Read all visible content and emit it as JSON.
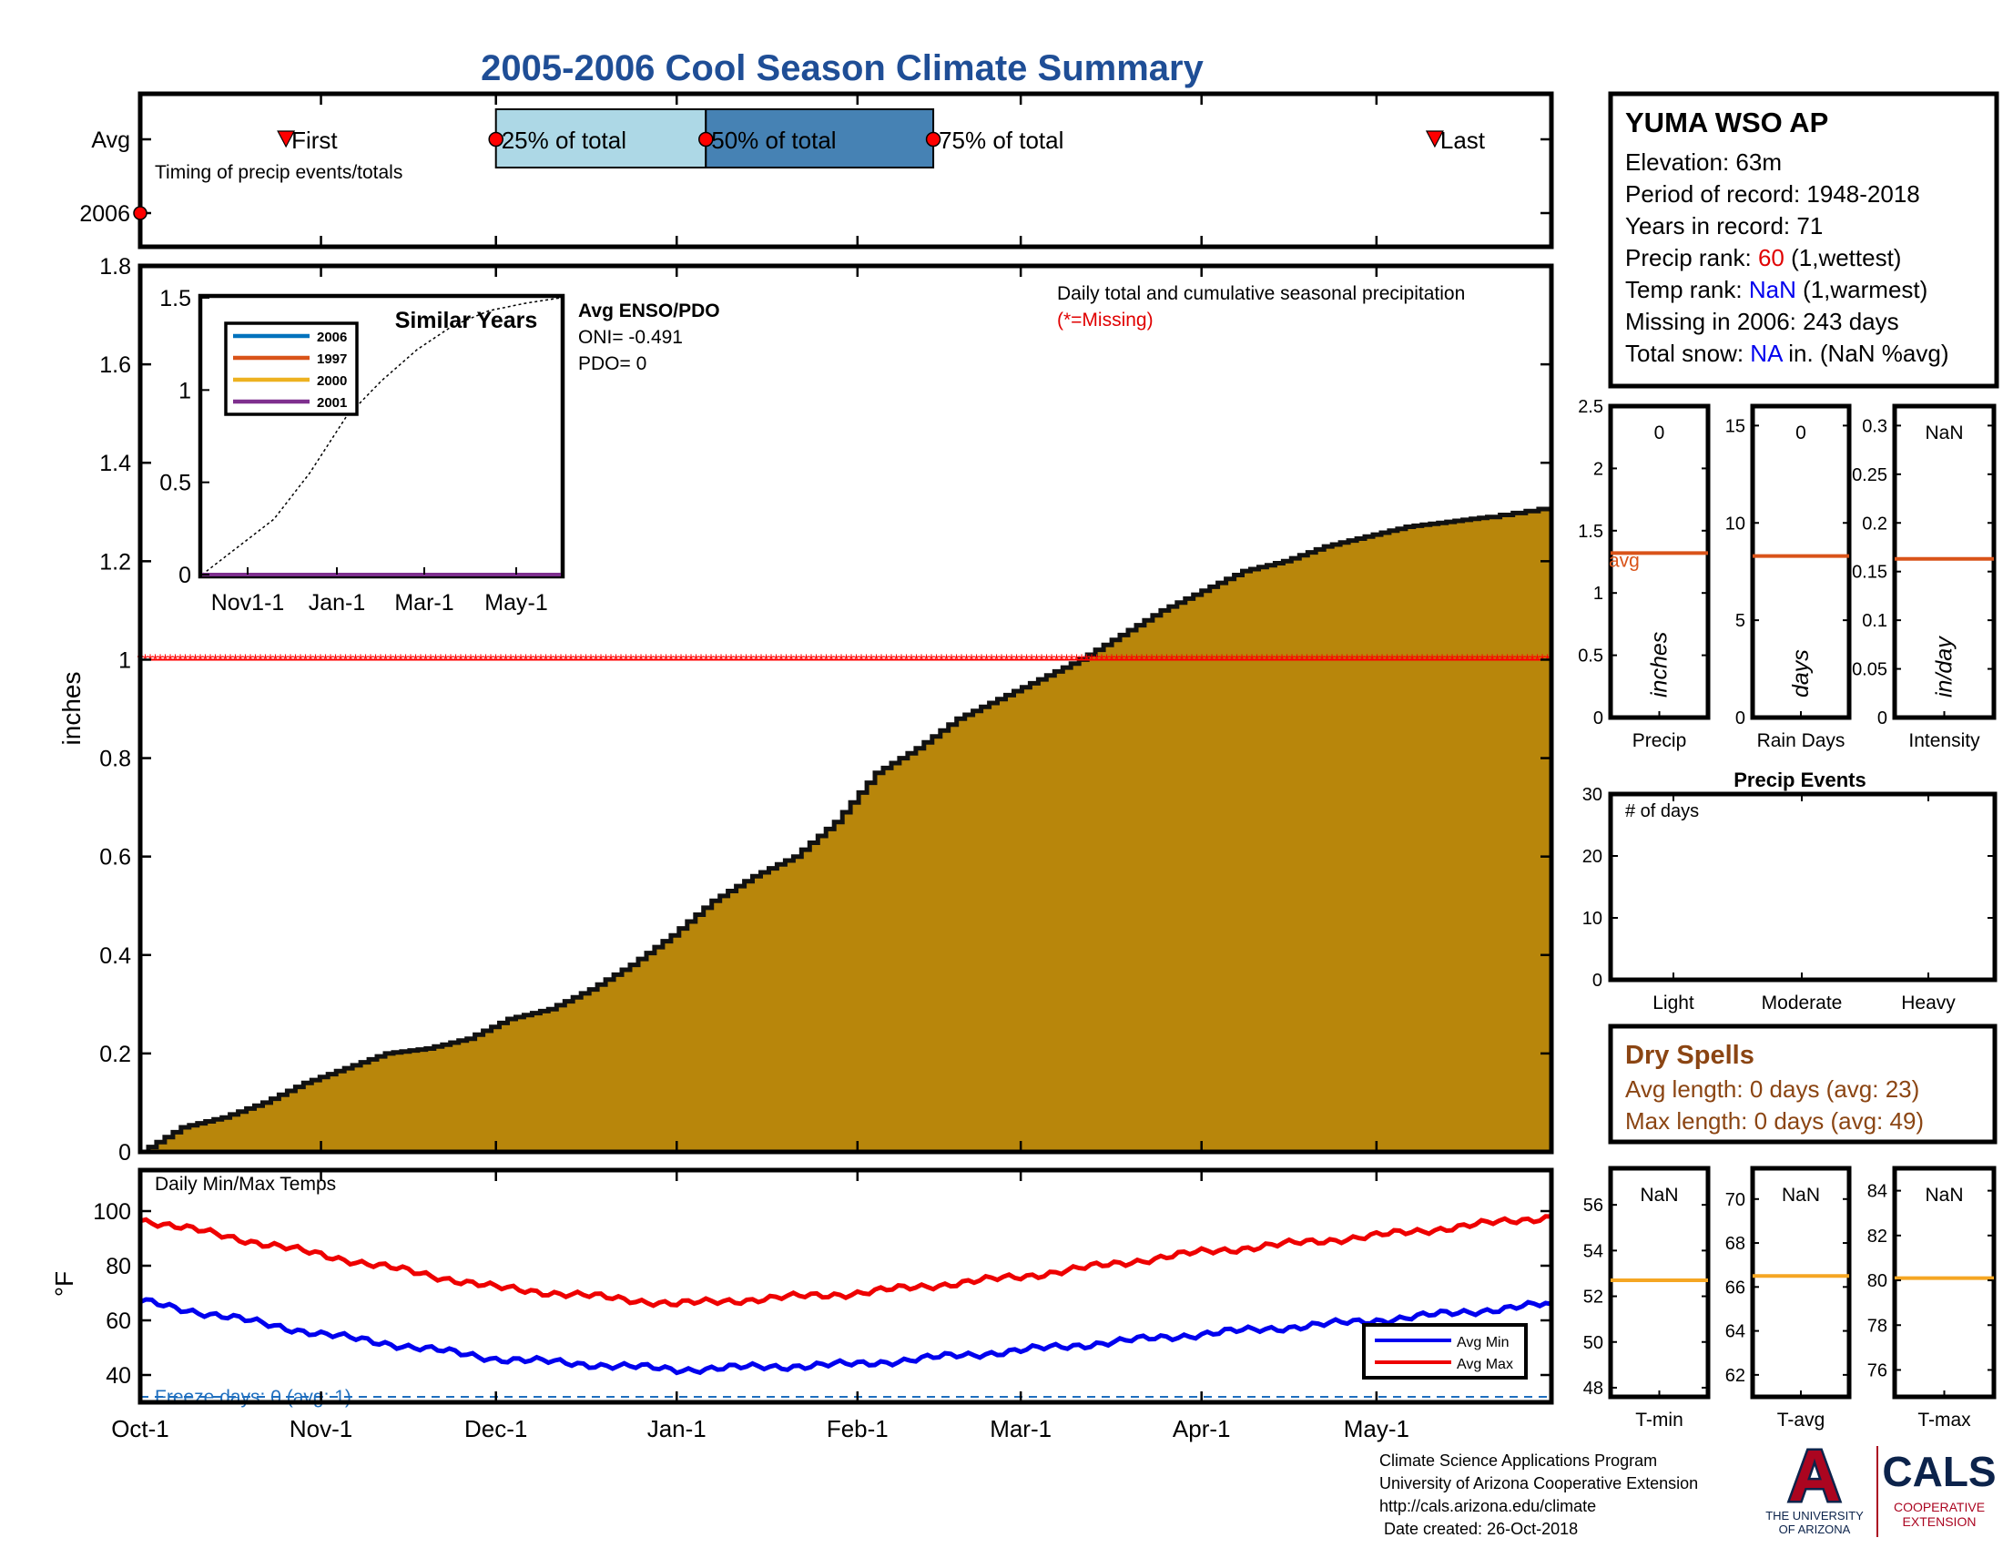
{
  "title": "2005-2006 Cool Season Climate Summary",
  "colors": {
    "title": "#1f4e96",
    "fill": "#b8860b",
    "red": "#ff0000",
    "blue": "#0000ee",
    "orange": "#d95319",
    "gold": "#f5a623",
    "light_blue_box": "#add8e6",
    "dark_blue_box": "#4682b4",
    "dry_spell": "#8b4513"
  },
  "timing": {
    "row_labels": [
      "Avg",
      "2006"
    ],
    "caption": "Timing of precip events/totals",
    "markers": [
      {
        "label": "First",
        "date": "2005-10-26",
        "kind": "triangle"
      },
      {
        "label": "25% of total",
        "date": "2005-12-01",
        "kind": "circle"
      },
      {
        "label": "50% of total",
        "date": "2006-01-06",
        "kind": "circle"
      },
      {
        "label": "75% of total",
        "date": "2006-02-14",
        "kind": "circle"
      },
      {
        "label": "Last",
        "date": "2006-05-11",
        "kind": "triangle"
      }
    ],
    "year_marker_date": "2005-10-01"
  },
  "x_axis": {
    "start": "2005-10-01",
    "end": "2006-05-31",
    "ticks": [
      {
        "label": "Oct-1",
        "date": "2005-10-01"
      },
      {
        "label": "Nov-1",
        "date": "2005-11-01"
      },
      {
        "label": "Dec-1",
        "date": "2005-12-01"
      },
      {
        "label": "Jan-1",
        "date": "2006-01-01"
      },
      {
        "label": "Feb-1",
        "date": "2006-02-01"
      },
      {
        "label": "Mar-1",
        "date": "2006-03-01"
      },
      {
        "label": "Apr-1",
        "date": "2006-04-01"
      },
      {
        "label": "May-1",
        "date": "2006-05-01"
      }
    ]
  },
  "chart_data": [
    {
      "id": "precip",
      "type": "area",
      "title": "Daily total and cumulative seasonal precipitation",
      "subtitle": "(*=Missing)",
      "ylabel": "inches",
      "ylim": [
        0,
        1.8
      ],
      "yticks": [
        "0",
        "0.2",
        "0.4",
        "0.6",
        "0.8",
        "1",
        "1.2",
        "1.4",
        "1.6",
        "1.8"
      ],
      "missing_value": 1.0,
      "cumulative_avg": [
        [
          "2005-10-01",
          0.0
        ],
        [
          "2005-10-08",
          0.05
        ],
        [
          "2005-10-15",
          0.07
        ],
        [
          "2005-10-22",
          0.1
        ],
        [
          "2005-10-29",
          0.14
        ],
        [
          "2005-11-05",
          0.17
        ],
        [
          "2005-11-12",
          0.2
        ],
        [
          "2005-11-19",
          0.21
        ],
        [
          "2005-11-26",
          0.23
        ],
        [
          "2005-12-03",
          0.27
        ],
        [
          "2005-12-10",
          0.29
        ],
        [
          "2005-12-17",
          0.33
        ],
        [
          "2005-12-24",
          0.38
        ],
        [
          "2005-12-31",
          0.44
        ],
        [
          "2006-01-07",
          0.51
        ],
        [
          "2006-01-14",
          0.56
        ],
        [
          "2006-01-21",
          0.6
        ],
        [
          "2006-01-28",
          0.67
        ],
        [
          "2006-02-04",
          0.77
        ],
        [
          "2006-02-11",
          0.82
        ],
        [
          "2006-02-18",
          0.88
        ],
        [
          "2006-02-25",
          0.92
        ],
        [
          "2006-03-04",
          0.96
        ],
        [
          "2006-03-11",
          1.0
        ],
        [
          "2006-03-18",
          1.05
        ],
        [
          "2006-03-25",
          1.1
        ],
        [
          "2006-04-01",
          1.14
        ],
        [
          "2006-04-08",
          1.18
        ],
        [
          "2006-04-15",
          1.2
        ],
        [
          "2006-04-22",
          1.23
        ],
        [
          "2006-04-29",
          1.25
        ],
        [
          "2006-05-06",
          1.27
        ],
        [
          "2006-05-13",
          1.28
        ],
        [
          "2006-05-20",
          1.29
        ],
        [
          "2006-05-31",
          1.31
        ]
      ]
    },
    {
      "id": "similar_years",
      "type": "line",
      "title": "Similar Years",
      "xticks": [
        "Nov1-1",
        "Jan-1",
        "Mar-1",
        "May-1"
      ],
      "yticks": [
        "0",
        "0.5",
        "1",
        "1.5"
      ],
      "ylim": [
        0,
        1.5
      ],
      "series": [
        {
          "name": "2006",
          "color": "#0072bd"
        },
        {
          "name": "1997",
          "color": "#d95319"
        },
        {
          "name": "2000",
          "color": "#edb120"
        },
        {
          "name": "2001",
          "color": "#7e2f8e"
        }
      ],
      "avg_curve": [
        [
          0,
          0.0
        ],
        [
          0.1,
          0.15
        ],
        [
          0.2,
          0.3
        ],
        [
          0.3,
          0.55
        ],
        [
          0.4,
          0.85
        ],
        [
          0.5,
          1.05
        ],
        [
          0.6,
          1.22
        ],
        [
          0.7,
          1.35
        ],
        [
          0.8,
          1.43
        ],
        [
          0.9,
          1.47
        ],
        [
          1.0,
          1.5
        ]
      ]
    },
    {
      "id": "temps",
      "type": "line",
      "title": "Daily Min/Max Temps",
      "ylabel": "°F",
      "ylim": [
        30,
        115
      ],
      "yticks": [
        "40",
        "60",
        "80",
        "100"
      ],
      "freeze_line": 32,
      "freeze_label": "Freeze days: 0 (avg: 1)",
      "series": [
        {
          "name": "Avg Min",
          "color": "#0000ee",
          "points": [
            [
              "2005-10-01",
              67
            ],
            [
              "2005-11-01",
              55
            ],
            [
              "2005-12-01",
              46
            ],
            [
              "2006-01-01",
              42
            ],
            [
              "2006-02-01",
              44
            ],
            [
              "2006-03-01",
              49
            ],
            [
              "2006-04-01",
              55
            ],
            [
              "2006-05-01",
              60
            ],
            [
              "2006-05-31",
              66
            ]
          ]
        },
        {
          "name": "Avg Max",
          "color": "#ee0000",
          "points": [
            [
              "2005-10-01",
              97
            ],
            [
              "2005-11-01",
              84
            ],
            [
              "2005-12-01",
              72
            ],
            [
              "2006-01-01",
              66
            ],
            [
              "2006-02-01",
              70
            ],
            [
              "2006-03-01",
              76
            ],
            [
              "2006-04-01",
              85
            ],
            [
              "2006-05-01",
              91
            ],
            [
              "2006-05-31",
              98
            ]
          ]
        }
      ]
    },
    {
      "id": "precip_bars",
      "type": "bar",
      "panels": [
        {
          "label": "Precip",
          "unit": "inches",
          "value": "0",
          "avg_label": "avg",
          "yticks": [
            "0",
            "0.5",
            "1",
            "1.5",
            "2",
            "2.5"
          ],
          "ylim": [
            0,
            2.5
          ],
          "avg": 1.32
        },
        {
          "label": "Rain Days",
          "unit": "days",
          "value": "0",
          "yticks": [
            "0",
            "5",
            "10",
            "15"
          ],
          "ylim": [
            0,
            16
          ],
          "avg": 8.3
        },
        {
          "label": "Intensity",
          "unit": "in/day",
          "value": "NaN",
          "yticks": [
            "0",
            "0.05",
            "0.1",
            "0.15",
            "0.2",
            "0.25",
            "0.3"
          ],
          "ylim": [
            0,
            0.32
          ],
          "avg": 0.163
        }
      ]
    },
    {
      "id": "precip_events",
      "type": "bar",
      "title": "Precip Events",
      "caption": "# of days",
      "categories": [
        "Light",
        "Moderate",
        "Heavy"
      ],
      "values": [
        0,
        0,
        0
      ],
      "yticks": [
        "0",
        "10",
        "20",
        "30"
      ],
      "ylim": [
        0,
        30
      ]
    },
    {
      "id": "temp_bars",
      "type": "bar",
      "panels": [
        {
          "label": "T-min",
          "value": "NaN",
          "yticks": [
            "48",
            "50",
            "52",
            "54",
            "56"
          ],
          "ylim": [
            47.6,
            57.6
          ],
          "avg": 52.7
        },
        {
          "label": "T-avg",
          "value": "NaN",
          "yticks": [
            "62",
            "64",
            "66",
            "68",
            "70"
          ],
          "ylim": [
            61,
            71.4
          ],
          "avg": 66.5
        },
        {
          "label": "T-max",
          "value": "NaN",
          "yticks": [
            "76",
            "78",
            "80",
            "82",
            "84"
          ],
          "ylim": [
            74.8,
            85
          ],
          "avg": 80.1
        }
      ]
    }
  ],
  "station": {
    "name": "YUMA WSO AP",
    "elevation": "Elevation: 63m",
    "period": "Period of record: 1948-2018",
    "years": "Years in record: 71",
    "precip_rank_prefix": "Precip rank: ",
    "precip_rank_value": "60",
    "precip_rank_suffix": " (1,wettest)",
    "temp_rank_prefix": "Temp rank: ",
    "temp_rank_value": "NaN",
    "temp_rank_suffix": " (1,warmest)",
    "missing": "Missing in 2006: 243 days",
    "snow_prefix": "Total snow: ",
    "snow_value": "NA",
    "snow_suffix": " in. (NaN %avg)"
  },
  "enso": {
    "title": "Avg ENSO/PDO",
    "oni": "ONI= -0.491",
    "pdo": "PDO= 0"
  },
  "dry_spells": {
    "title": "Dry Spells",
    "avg": "Avg length: 0 days (avg: 23)",
    "max": "Max length: 0 days (avg: 49)"
  },
  "footer": {
    "lines": [
      "Climate Science Applications Program",
      "University of Arizona Cooperative Extension",
      "http://cals.arizona.edu/climate",
      " Date created: 26-Oct-2018"
    ],
    "logo_letter": "A",
    "logo_text_1": "THE UNIVERSITY",
    "logo_text_2": "OF ARIZONA",
    "cals": "CALS",
    "cals_sub_1": "COOPERATIVE",
    "cals_sub_2": "EXTENSION"
  }
}
